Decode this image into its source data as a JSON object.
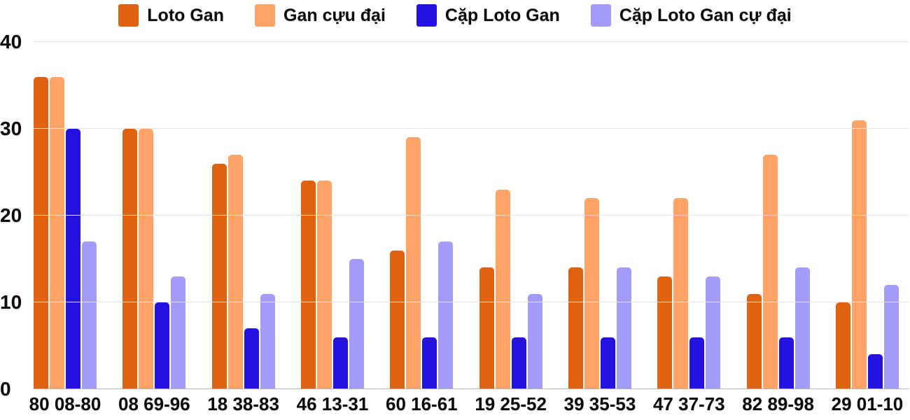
{
  "chart_data": {
    "type": "bar",
    "title": "",
    "xlabel": "",
    "ylabel": "",
    "categories": [
      "80 08-80",
      "08 69-96",
      "18 38-83",
      "46 13-31",
      "60 16-61",
      "19 25-52",
      "39 35-53",
      "47 37-73",
      "82 89-98",
      "29 01-10"
    ],
    "series": [
      {
        "name": "Loto Gan",
        "color": "#e0620f",
        "values": [
          36,
          30,
          26,
          24,
          16,
          14,
          14,
          13,
          11,
          10
        ]
      },
      {
        "name": "Gan cựu đại",
        "color": "#ffa368",
        "values": [
          36,
          30,
          27,
          24,
          29,
          23,
          22,
          22,
          27,
          31
        ]
      },
      {
        "name": "Cặp Loto Gan",
        "color": "#2413e0",
        "values": [
          30,
          10,
          7,
          6,
          6,
          6,
          6,
          6,
          6,
          4
        ]
      },
      {
        "name": "Cặp Loto Gan cự đại",
        "color": "#a49cfa",
        "values": [
          17,
          13,
          11,
          15,
          17,
          11,
          14,
          13,
          14,
          12
        ]
      }
    ],
    "ylim": [
      0,
      40
    ],
    "yticks": [
      0,
      10,
      20,
      30,
      40
    ],
    "grid": true,
    "legend_position": "top",
    "colors": {
      "grid": "#e4e4e4",
      "baseline": "#b3b3b3",
      "text": "#0b0b0b",
      "background": "#ffffff"
    }
  }
}
